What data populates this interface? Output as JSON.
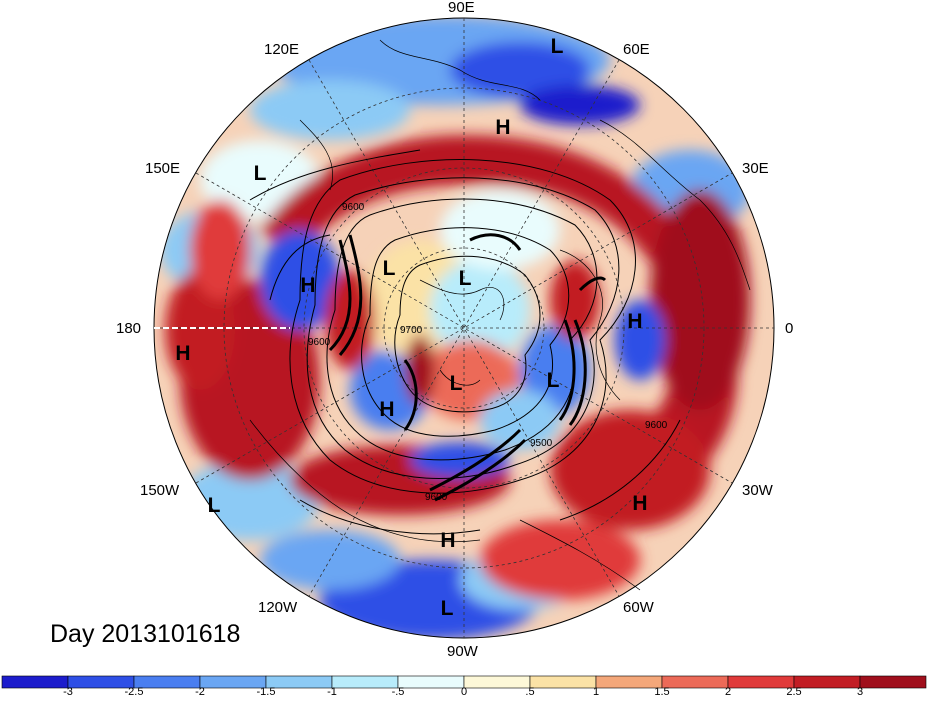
{
  "title": "Day 2013101618",
  "longitude_labels": {
    "e90": "90E",
    "e60": "60E",
    "e30": "30E",
    "zero": "0",
    "w30": "30W",
    "w60": "60W",
    "w90": "90W",
    "w120": "120W",
    "w150": "150W",
    "dateline": "180",
    "e150": "150E",
    "e120": "120E"
  },
  "pressure_centers": [
    {
      "label": "L",
      "region": "upper-center"
    },
    {
      "label": "H",
      "region": "upper"
    },
    {
      "label": "L",
      "region": "upper-left"
    },
    {
      "label": "H",
      "region": "left"
    },
    {
      "label": "L",
      "region": "center-left"
    },
    {
      "label": "L",
      "region": "center"
    },
    {
      "label": "H",
      "region": "right"
    },
    {
      "label": "L",
      "region": "center-right"
    },
    {
      "label": "L",
      "region": "center-lower"
    },
    {
      "label": "H",
      "region": "center-lower-left"
    },
    {
      "label": "H",
      "region": "far-left"
    },
    {
      "label": "L",
      "region": "lower-left"
    },
    {
      "label": "H",
      "region": "lower-right"
    },
    {
      "label": "H",
      "region": "lower-center"
    },
    {
      "label": "L",
      "region": "bottom"
    }
  ],
  "contour_labels": [
    "9600",
    "9700",
    "9600",
    "9500",
    "9600",
    "9600"
  ],
  "colorbar": {
    "ticks": [
      "-3",
      "-2.5",
      "-2",
      "-1.5",
      "-1",
      "-.5",
      "0",
      ".5",
      "1",
      "1.5",
      "2",
      "2.5",
      "3"
    ],
    "colors": [
      "#1c1ccc",
      "#2e4fe6",
      "#4a7ef0",
      "#6aa6f3",
      "#8ccaf5",
      "#b8ecfb",
      "#e9fcfd",
      "#fdf8d8",
      "#fbe2a6",
      "#f4a77a",
      "#ec6a58",
      "#e03a3a",
      "#c21d24",
      "#a00f1c"
    ]
  }
}
